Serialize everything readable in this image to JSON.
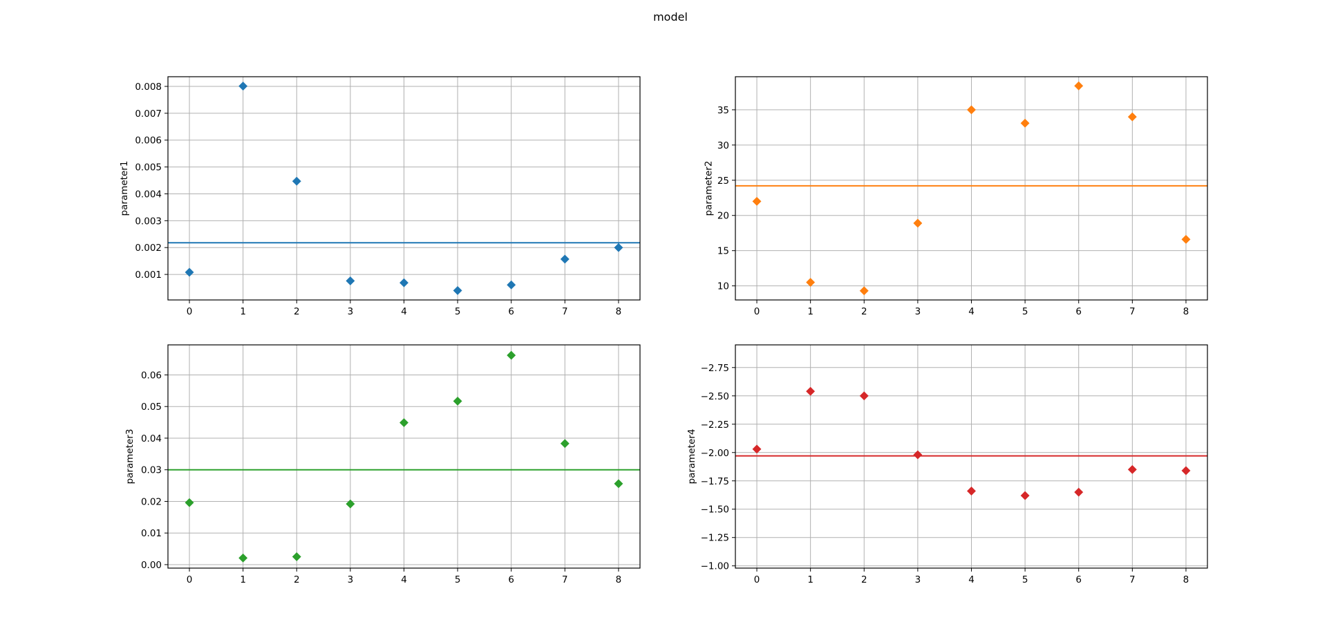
{
  "figure": {
    "suptitle": "model"
  },
  "chart_data": [
    {
      "type": "scatter",
      "xlabel": "",
      "ylabel": "parameter1",
      "marker": "diamond",
      "color": "#1f77b4",
      "grid": true,
      "x": [
        0,
        1,
        2,
        3,
        4,
        5,
        6,
        7,
        8
      ],
      "y": [
        0.00108,
        0.00801,
        0.00447,
        0.00076,
        0.00069,
        0.0004,
        0.00061,
        0.00157,
        0.002
      ],
      "hline": 0.00218,
      "xticks": [
        0,
        1,
        2,
        3,
        4,
        5,
        6,
        7,
        8
      ],
      "xtick_labels": [
        "0",
        "1",
        "2",
        "3",
        "4",
        "5",
        "6",
        "7",
        "8"
      ],
      "yticks": [
        0.001,
        0.002,
        0.003,
        0.004,
        0.005,
        0.006,
        0.007,
        0.008
      ],
      "ytick_labels": [
        "0.001",
        "0.002",
        "0.003",
        "0.004",
        "0.005",
        "0.006",
        "0.007",
        "0.008"
      ],
      "xlim": [
        -0.4,
        8.4
      ],
      "ylim": [
        5e-05,
        0.00836
      ]
    },
    {
      "type": "scatter",
      "xlabel": "",
      "ylabel": "parameter2",
      "marker": "diamond",
      "color": "#ff7f0e",
      "grid": true,
      "x": [
        0,
        1,
        2,
        3,
        4,
        5,
        6,
        7,
        8
      ],
      "y": [
        22.0,
        10.5,
        9.3,
        18.9,
        35.0,
        33.1,
        38.4,
        34.0,
        16.6
      ],
      "hline": 24.2,
      "xticks": [
        0,
        1,
        2,
        3,
        4,
        5,
        6,
        7,
        8
      ],
      "xtick_labels": [
        "0",
        "1",
        "2",
        "3",
        "4",
        "5",
        "6",
        "7",
        "8"
      ],
      "yticks": [
        10,
        15,
        20,
        25,
        30,
        35
      ],
      "ytick_labels": [
        "10",
        "15",
        "20",
        "25",
        "30",
        "35"
      ],
      "xlim": [
        -0.4,
        8.4
      ],
      "ylim": [
        8.0,
        39.7
      ]
    },
    {
      "type": "scatter",
      "xlabel": "",
      "ylabel": "parameter3",
      "marker": "diamond",
      "color": "#2ca02c",
      "grid": true,
      "x": [
        0,
        1,
        2,
        3,
        4,
        5,
        6,
        7,
        8
      ],
      "y": [
        0.0196,
        0.0021,
        0.0025,
        0.0192,
        0.0449,
        0.0517,
        0.0662,
        0.0383,
        0.0256
      ],
      "hline": 0.03,
      "xticks": [
        0,
        1,
        2,
        3,
        4,
        5,
        6,
        7,
        8
      ],
      "xtick_labels": [
        "0",
        "1",
        "2",
        "3",
        "4",
        "5",
        "6",
        "7",
        "8"
      ],
      "yticks": [
        0.0,
        0.01,
        0.02,
        0.03,
        0.04,
        0.05,
        0.06
      ],
      "ytick_labels": [
        "0.00",
        "0.01",
        "0.02",
        "0.03",
        "0.04",
        "0.05",
        "0.06"
      ],
      "xlim": [
        -0.4,
        8.4
      ],
      "ylim": [
        -0.0011,
        0.0695
      ]
    },
    {
      "type": "scatter",
      "xlabel": "",
      "ylabel": "parameter4",
      "marker": "diamond",
      "color": "#d62728",
      "grid": true,
      "y_inverted": true,
      "x": [
        0,
        1,
        2,
        3,
        4,
        5,
        6,
        7,
        8
      ],
      "y": [
        -2.03,
        -2.54,
        -2.5,
        -1.98,
        -1.66,
        -1.62,
        -1.65,
        -1.85,
        -1.84
      ],
      "hline": -1.97,
      "xticks": [
        0,
        1,
        2,
        3,
        4,
        5,
        6,
        7,
        8
      ],
      "xtick_labels": [
        "0",
        "1",
        "2",
        "3",
        "4",
        "5",
        "6",
        "7",
        "8"
      ],
      "yticks": [
        -2.75,
        -2.5,
        -2.25,
        -2.0,
        -1.75,
        -1.5,
        -1.25,
        -1.0
      ],
      "ytick_labels": [
        "−2.75",
        "−2.50",
        "−2.25",
        "−2.00",
        "−1.75",
        "−1.50",
        "−1.25",
        "−1.00"
      ],
      "xlim": [
        -0.4,
        8.4
      ],
      "ylim": [
        -0.98,
        -2.95
      ]
    }
  ]
}
